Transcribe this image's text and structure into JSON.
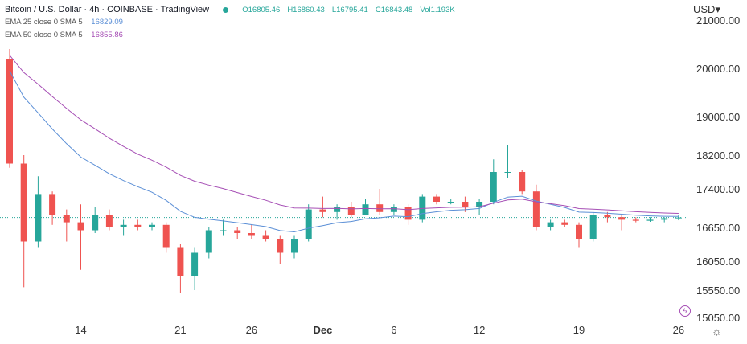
{
  "header": {
    "title": "Bitcoin / U.S. Dollar · 4h · COINBASE · TradingView",
    "open": "O16805.46",
    "high": "H16860.43",
    "low": "L16795.41",
    "close": "C16843.48",
    "volume": "Vol1.193K"
  },
  "indicators": [
    {
      "label": "EMA 25 close 0 SMA 5",
      "value": "16829.09",
      "color": "#5b8fd6",
      "period": 25
    },
    {
      "label": "EMA 50 close 0 SMA 5",
      "value": "16855.86",
      "color": "#a64fb5",
      "period": 50
    }
  ],
  "currency_label": "USD",
  "colors": {
    "up": "#26a69a",
    "down": "#ef5350"
  },
  "chart_data": {
    "type": "candlestick",
    "y_ticks": [
      21000,
      20000,
      19000,
      18200,
      17400,
      16650,
      16050,
      15550,
      15050
    ],
    "y_tick_labels": [
      "21000.00",
      "20000.00",
      "19000.00",
      "18200.00",
      "17400.00",
      "16650.00",
      "16050.00",
      "15550.00",
      "15050.00"
    ],
    "x_ticks": [
      {
        "index": 5,
        "label": "14"
      },
      {
        "index": 12,
        "label": "21"
      },
      {
        "index": 17,
        "label": "26"
      },
      {
        "index": 22,
        "label": "Dec"
      },
      {
        "index": 27,
        "label": "6"
      },
      {
        "index": 33,
        "label": "12"
      },
      {
        "index": 40,
        "label": "19"
      },
      {
        "index": 47,
        "label": "26"
      }
    ],
    "last_price": 16843.48,
    "ohlc": [
      [
        20200,
        20400,
        17900,
        18000
      ],
      [
        18000,
        18200,
        15600,
        16400
      ],
      [
        16400,
        17700,
        16300,
        17300
      ],
      [
        17300,
        17350,
        16700,
        16900
      ],
      [
        16900,
        17000,
        16400,
        16750
      ],
      [
        16750,
        17100,
        15900,
        16600
      ],
      [
        16600,
        17050,
        16550,
        16900
      ],
      [
        16900,
        17000,
        16600,
        16650
      ],
      [
        16650,
        16800,
        16500,
        16700
      ],
      [
        16700,
        16800,
        16600,
        16650
      ],
      [
        16650,
        16750,
        16600,
        16700
      ],
      [
        16700,
        16750,
        16200,
        16300
      ],
      [
        16300,
        16350,
        15500,
        15800
      ],
      [
        15800,
        16300,
        15550,
        16200
      ],
      [
        16200,
        16650,
        16100,
        16600
      ],
      [
        16600,
        16800,
        16500,
        16600
      ],
      [
        16600,
        16650,
        16450,
        16550
      ],
      [
        16550,
        16700,
        16450,
        16500
      ],
      [
        16500,
        16600,
        16400,
        16450
      ],
      [
        16450,
        16500,
        16000,
        16200
      ],
      [
        16200,
        16500,
        16100,
        16450
      ],
      [
        16450,
        17100,
        16400,
        17000
      ],
      [
        17000,
        17250,
        16850,
        16950
      ],
      [
        16950,
        17100,
        16800,
        17050
      ],
      [
        17050,
        17150,
        16850,
        16900
      ],
      [
        16900,
        17200,
        16900,
        17100
      ],
      [
        17100,
        17400,
        16900,
        16950
      ],
      [
        16950,
        17100,
        16900,
        17050
      ],
      [
        17050,
        17100,
        16700,
        16800
      ],
      [
        16800,
        17300,
        16750,
        17250
      ],
      [
        17250,
        17300,
        17100,
        17150
      ],
      [
        17150,
        17200,
        17100,
        17150
      ],
      [
        17150,
        17250,
        16950,
        17050
      ],
      [
        17050,
        17200,
        16900,
        17150
      ],
      [
        17150,
        18100,
        17100,
        17800
      ],
      [
        17800,
        18400,
        17650,
        17800
      ],
      [
        17800,
        17850,
        17300,
        17350
      ],
      [
        17350,
        17500,
        16600,
        16650
      ],
      [
        16650,
        16800,
        16600,
        16750
      ],
      [
        16750,
        16800,
        16650,
        16700
      ],
      [
        16700,
        16750,
        16300,
        16450
      ],
      [
        16450,
        16950,
        16400,
        16900
      ],
      [
        16900,
        16950,
        16750,
        16850
      ],
      [
        16850,
        16900,
        16600,
        16800
      ],
      [
        16800,
        16850,
        16750,
        16780
      ],
      [
        16780,
        16850,
        16760,
        16800
      ],
      [
        16800,
        16850,
        16750,
        16830
      ],
      [
        16830,
        16900,
        16790,
        16843
      ]
    ]
  }
}
